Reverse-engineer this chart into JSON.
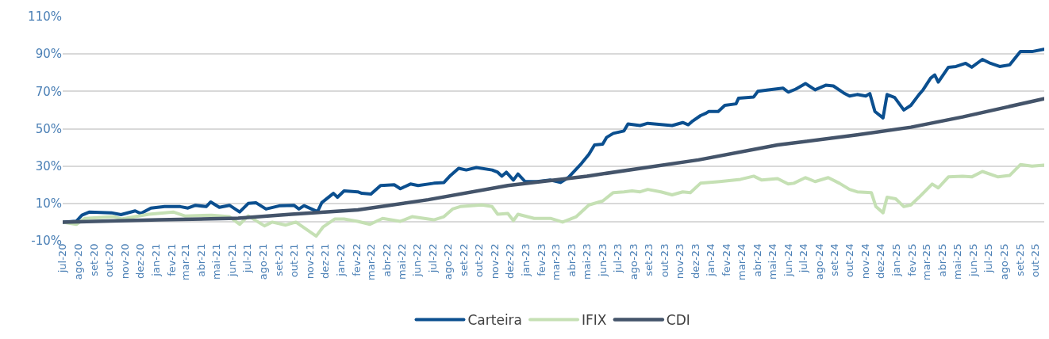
{
  "chart_data": {
    "type": "line",
    "legend": "bottom",
    "grid": "y",
    "xlim": [
      "2020-07-01",
      "2025-10-19"
    ],
    "ylim": [
      -10,
      110
    ],
    "yticks": [
      {
        "value": -10,
        "label": "-10%"
      },
      {
        "value": 10,
        "label": "10%"
      },
      {
        "value": 30,
        "label": "30%"
      },
      {
        "value": 50,
        "label": "50%"
      },
      {
        "value": 70,
        "label": "70%"
      },
      {
        "value": 90,
        "label": "90%"
      },
      {
        "value": 110,
        "label": "110%"
      }
    ],
    "xticks": [
      {
        "value": "2020-07-01",
        "label": "jul-20"
      },
      {
        "value": "2020-08-01",
        "label": "ago-20"
      },
      {
        "value": "2020-09-01",
        "label": "set-20"
      },
      {
        "value": "2020-10-01",
        "label": "out-20"
      },
      {
        "value": "2020-11-01",
        "label": "nov-20"
      },
      {
        "value": "2020-12-01",
        "label": "dez-20"
      },
      {
        "value": "2021-01-01",
        "label": "jan-21"
      },
      {
        "value": "2021-02-01",
        "label": "fev-21"
      },
      {
        "value": "2021-03-01",
        "label": "mar-21"
      },
      {
        "value": "2021-04-01",
        "label": "abr-21"
      },
      {
        "value": "2021-05-01",
        "label": "mai-21"
      },
      {
        "value": "2021-06-01",
        "label": "jun-21"
      },
      {
        "value": "2021-07-01",
        "label": "jul-21"
      },
      {
        "value": "2021-08-01",
        "label": "ago-21"
      },
      {
        "value": "2021-09-01",
        "label": "set-21"
      },
      {
        "value": "2021-10-01",
        "label": "out-21"
      },
      {
        "value": "2021-11-01",
        "label": "nov-21"
      },
      {
        "value": "2021-12-01",
        "label": "dez-21"
      },
      {
        "value": "2022-01-01",
        "label": "jan-22"
      },
      {
        "value": "2022-02-01",
        "label": "fev-22"
      },
      {
        "value": "2022-03-01",
        "label": "mar-22"
      },
      {
        "value": "2022-04-01",
        "label": "abr-22"
      },
      {
        "value": "2022-05-01",
        "label": "mai-22"
      },
      {
        "value": "2022-06-01",
        "label": "jun-22"
      },
      {
        "value": "2022-07-01",
        "label": "jul-22"
      },
      {
        "value": "2022-08-01",
        "label": "ago-22"
      },
      {
        "value": "2022-09-01",
        "label": "set-22"
      },
      {
        "value": "2022-10-01",
        "label": "out-22"
      },
      {
        "value": "2022-11-01",
        "label": "nov-22"
      },
      {
        "value": "2022-12-01",
        "label": "dez-22"
      },
      {
        "value": "2023-01-01",
        "label": "jan-23"
      },
      {
        "value": "2023-02-01",
        "label": "fev-23"
      },
      {
        "value": "2023-03-01",
        "label": "mar-23"
      },
      {
        "value": "2023-04-01",
        "label": "abr-23"
      },
      {
        "value": "2023-05-01",
        "label": "mai-23"
      },
      {
        "value": "2023-06-01",
        "label": "jun-23"
      },
      {
        "value": "2023-07-01",
        "label": "jul-23"
      },
      {
        "value": "2023-08-01",
        "label": "ago-23"
      },
      {
        "value": "2023-09-01",
        "label": "set-23"
      },
      {
        "value": "2023-10-01",
        "label": "out-23"
      },
      {
        "value": "2023-11-01",
        "label": "nov-23"
      },
      {
        "value": "2023-12-01",
        "label": "dez-23"
      },
      {
        "value": "2024-01-01",
        "label": "jan-24"
      },
      {
        "value": "2024-02-01",
        "label": "fev-24"
      },
      {
        "value": "2024-03-01",
        "label": "mar-24"
      },
      {
        "value": "2024-04-01",
        "label": "abr-24"
      },
      {
        "value": "2024-05-01",
        "label": "mai-24"
      },
      {
        "value": "2024-06-01",
        "label": "jun-24"
      },
      {
        "value": "2024-07-01",
        "label": "jul-24"
      },
      {
        "value": "2024-08-01",
        "label": "ago-24"
      },
      {
        "value": "2024-09-01",
        "label": "set-24"
      },
      {
        "value": "2024-10-01",
        "label": "out-24"
      },
      {
        "value": "2024-11-01",
        "label": "nov-24"
      },
      {
        "value": "2024-12-01",
        "label": "dez-24"
      },
      {
        "value": "2025-01-01",
        "label": "jan-25"
      },
      {
        "value": "2025-02-01",
        "label": "fev-25"
      },
      {
        "value": "2025-03-01",
        "label": "mar-25"
      },
      {
        "value": "2025-04-01",
        "label": "abr-25"
      },
      {
        "value": "2025-05-01",
        "label": "mai-25"
      },
      {
        "value": "2025-06-01",
        "label": "jun-25"
      },
      {
        "value": "2025-07-01",
        "label": "jul-25"
      },
      {
        "value": "2025-08-01",
        "label": "ago-25"
      },
      {
        "value": "2025-09-01",
        "label": "set-25"
      },
      {
        "value": "2025-10-01",
        "label": "out-25"
      }
    ],
    "series": [
      {
        "name": "Carteira",
        "color": "#0b4f8f",
        "x": [
          "2020-07-01",
          "2020-07-28",
          "2020-08-08",
          "2020-08-23",
          "2020-10-05",
          "2020-10-24",
          "2020-11-21",
          "2020-12-02",
          "2020-12-22",
          "2021-01-18",
          "2021-02-18",
          "2021-03-05",
          "2021-03-20",
          "2021-04-10",
          "2021-04-19",
          "2021-05-06",
          "2021-05-26",
          "2021-06-15",
          "2021-07-02",
          "2021-07-17",
          "2021-08-06",
          "2021-09-03",
          "2021-09-30",
          "2021-10-10",
          "2021-10-20",
          "2021-11-11",
          "2021-11-16",
          "2021-11-24",
          "2021-12-17",
          "2021-12-25",
          "2022-01-07",
          "2022-02-03",
          "2022-02-11",
          "2022-03-01",
          "2022-03-20",
          "2022-04-16",
          "2022-04-28",
          "2022-05-18",
          "2022-06-02",
          "2022-07-03",
          "2022-07-23",
          "2022-08-05",
          "2022-08-21",
          "2022-09-05",
          "2022-09-25",
          "2022-10-26",
          "2022-11-06",
          "2022-11-14",
          "2022-11-23",
          "2022-12-07",
          "2022-12-16",
          "2022-12-30",
          "2023-01-23",
          "2023-02-18",
          "2023-03-10",
          "2023-03-25",
          "2023-04-20",
          "2023-05-05",
          "2023-05-16",
          "2023-06-01",
          "2023-06-09",
          "2023-06-22",
          "2023-07-13",
          "2023-07-21",
          "2023-08-14",
          "2023-08-29",
          "2023-10-16",
          "2023-11-06",
          "2023-11-17",
          "2023-11-26",
          "2023-12-11",
          "2023-12-22",
          "2023-12-27",
          "2024-01-15",
          "2024-01-28",
          "2024-02-19",
          "2024-02-24",
          "2024-03-25",
          "2024-04-02",
          "2024-04-23",
          "2024-05-22",
          "2024-06-01",
          "2024-06-16",
          "2024-07-05",
          "2024-07-24",
          "2024-08-14",
          "2024-08-29",
          "2024-09-18",
          "2024-09-30",
          "2024-10-15",
          "2024-11-01",
          "2024-11-09",
          "2024-11-19",
          "2024-12-05",
          "2024-12-13",
          "2024-12-28",
          "2025-01-15",
          "2025-01-29",
          "2025-02-14",
          "2025-02-22",
          "2025-03-09",
          "2025-03-17",
          "2025-03-24",
          "2025-04-13",
          "2025-04-28",
          "2025-05-17",
          "2025-05-29",
          "2025-06-19",
          "2025-07-05",
          "2025-07-23",
          "2025-08-12",
          "2025-09-02",
          "2025-09-25",
          "2025-10-18"
        ],
        "values": [
          0,
          0.5,
          3.7,
          5.4,
          5,
          4,
          6,
          4.6,
          7.5,
          8.3,
          8.3,
          7.5,
          9,
          8.3,
          10.8,
          7.9,
          9,
          5.4,
          10,
          10.4,
          7,
          8.8,
          9,
          7,
          8.8,
          6.2,
          5.8,
          10.4,
          15.4,
          13.3,
          16.7,
          16.2,
          15.4,
          15,
          19.6,
          20,
          17.9,
          20.4,
          19.6,
          20.8,
          21.2,
          25,
          28.8,
          27.9,
          29.2,
          27.9,
          26.7,
          24.6,
          26.7,
          22.5,
          25.8,
          21.7,
          21.7,
          22.5,
          21.2,
          23.8,
          31.3,
          36.3,
          41.3,
          41.7,
          45.4,
          47.5,
          48.8,
          52.5,
          51.7,
          52.9,
          51.7,
          53.3,
          52.1,
          54.2,
          57,
          58.3,
          59.2,
          59.2,
          62.5,
          63.3,
          66.3,
          67,
          70,
          70.8,
          71.7,
          69.6,
          71.2,
          74.2,
          70.8,
          73.3,
          72.9,
          69.2,
          67.5,
          68.3,
          67.5,
          68.8,
          59.2,
          55.8,
          68.3,
          66.7,
          60,
          62.5,
          68.3,
          70.8,
          77.1,
          78.8,
          75,
          82.9,
          83.3,
          85,
          82.9,
          87.1,
          85,
          83.3,
          84.2,
          91.3,
          91.3,
          92.5
        ]
      },
      {
        "name": "IFIX",
        "color": "#c5e0b4",
        "x": [
          "2020-07-01",
          "2020-07-28",
          "2020-08-14",
          "2020-10-10",
          "2020-10-25",
          "2020-12-18",
          "2021-02-04",
          "2021-02-27",
          "2021-04-21",
          "2021-05-26",
          "2021-06-15",
          "2021-07-02",
          "2021-08-03",
          "2021-08-18",
          "2021-09-14",
          "2021-10-04",
          "2021-11-13",
          "2021-11-27",
          "2021-12-20",
          "2022-01-07",
          "2022-02-03",
          "2022-02-27",
          "2022-03-24",
          "2022-04-28",
          "2022-05-21",
          "2022-07-03",
          "2022-07-23",
          "2022-08-09",
          "2022-08-24",
          "2022-10-06",
          "2022-10-26",
          "2022-11-06",
          "2022-11-26",
          "2022-12-07",
          "2022-12-16",
          "2023-01-17",
          "2023-02-18",
          "2023-03-14",
          "2023-04-10",
          "2023-05-05",
          "2023-06-01",
          "2023-06-22",
          "2023-07-13",
          "2023-07-29",
          "2023-08-14",
          "2023-08-29",
          "2023-09-24",
          "2023-10-16",
          "2023-11-06",
          "2023-11-21",
          "2023-12-11",
          "2024-01-18",
          "2024-02-28",
          "2024-03-25",
          "2024-04-10",
          "2024-05-11",
          "2024-06-01",
          "2024-06-12",
          "2024-07-05",
          "2024-07-24",
          "2024-08-19",
          "2024-09-10",
          "2024-09-30",
          "2024-10-15",
          "2024-11-12",
          "2024-11-21",
          "2024-12-05",
          "2024-12-13",
          "2024-12-30",
          "2025-01-15",
          "2025-01-29",
          "2025-02-14",
          "2025-03-12",
          "2025-03-24",
          "2025-04-13",
          "2025-05-11",
          "2025-05-29",
          "2025-06-19",
          "2025-07-20",
          "2025-08-12",
          "2025-09-02",
          "2025-09-25",
          "2025-10-18"
        ],
        "values": [
          0,
          -1.2,
          2,
          2.9,
          1.7,
          4.2,
          5.4,
          3.3,
          3.7,
          2.9,
          -1.2,
          3.3,
          -2,
          0,
          -1.6,
          0,
          -7.5,
          -2.5,
          1.7,
          1.7,
          0.4,
          -1.2,
          2,
          0.4,
          2.9,
          1.2,
          2.9,
          7,
          8.3,
          9.2,
          8.3,
          4.2,
          4.6,
          0.8,
          4.2,
          2,
          2,
          0,
          2.9,
          9.2,
          11.3,
          15.8,
          16.2,
          16.7,
          16.2,
          17.5,
          16.2,
          14.6,
          16.2,
          15.8,
          20.8,
          21.7,
          22.9,
          24.6,
          22.5,
          23.3,
          20.4,
          20.8,
          23.8,
          21.7,
          23.8,
          20.8,
          17.5,
          16.2,
          15.8,
          8.3,
          5,
          13.3,
          12.5,
          8.3,
          9.2,
          13.3,
          20.4,
          18.3,
          24.2,
          24.6,
          24.2,
          27.1,
          24.2,
          25,
          30.8,
          30,
          30.5
        ]
      },
      {
        "name": "CDI",
        "color": "#44546a",
        "x": [
          "2020-07-01",
          "2021-01-07",
          "2021-06-12",
          "2021-09-25",
          "2022-02-03",
          "2022-06-22",
          "2022-11-26",
          "2023-05-01",
          "2023-12-07",
          "2024-05-11",
          "2024-10-15",
          "2025-01-29",
          "2025-05-11",
          "2025-10-18"
        ],
        "values": [
          0,
          1.2,
          2.1,
          4.2,
          6.5,
          12,
          19.6,
          24.6,
          33.3,
          41.3,
          46.7,
          50.8,
          56.3,
          66
        ]
      }
    ]
  }
}
